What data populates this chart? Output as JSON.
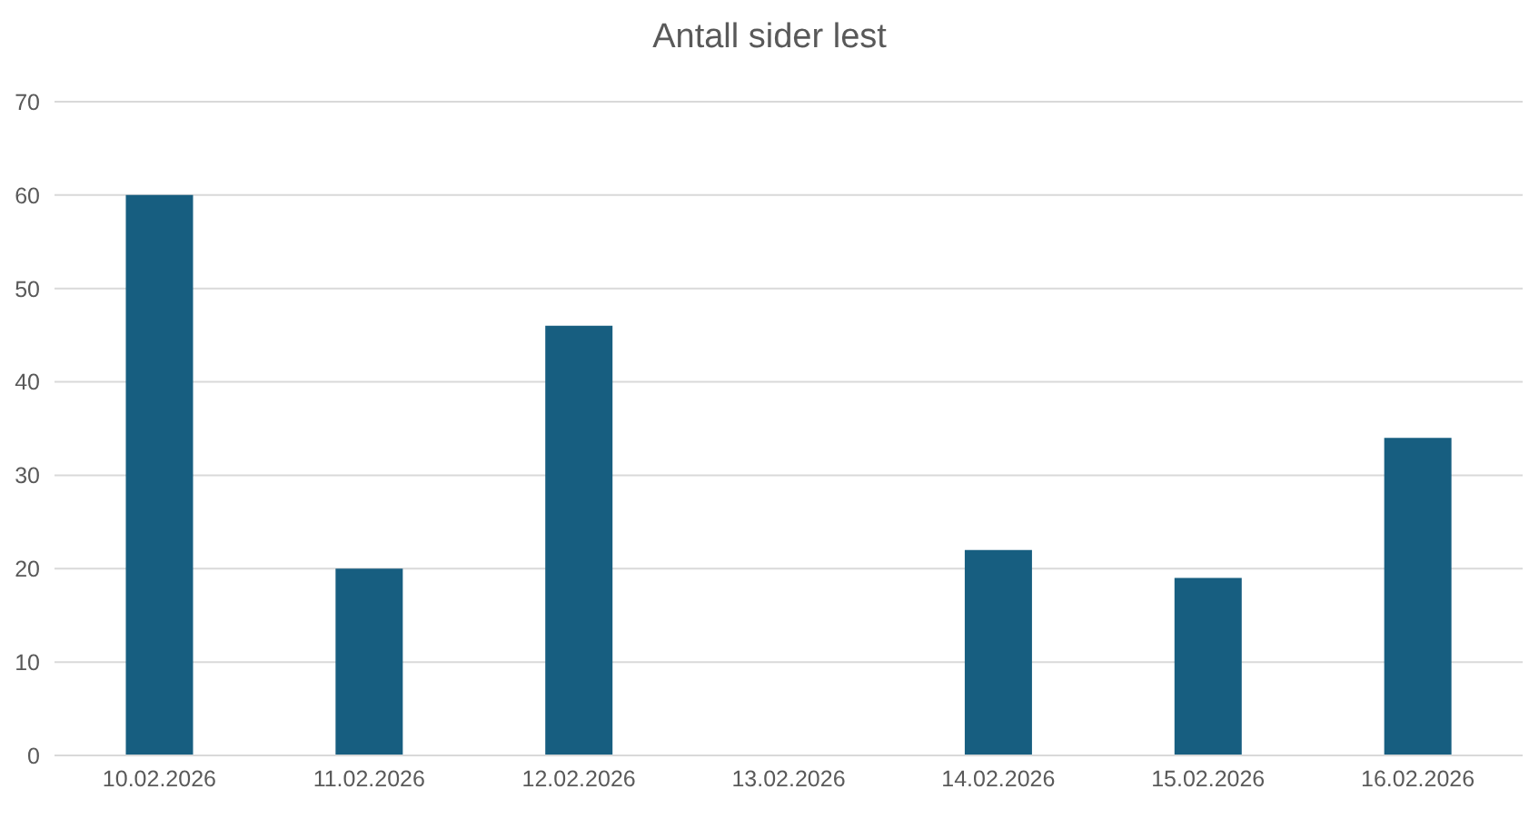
{
  "chart_data": {
    "type": "bar",
    "title": "Antall sider lest",
    "categories": [
      "10.02.2026",
      "11.02.2026",
      "12.02.2026",
      "13.02.2026",
      "14.02.2026",
      "15.02.2026",
      "16.02.2026"
    ],
    "values": [
      60,
      20,
      46,
      0,
      22,
      19,
      34
    ],
    "color": "#175e80",
    "ylim": [
      0,
      70
    ],
    "yticks": [
      0,
      10,
      20,
      30,
      40,
      50,
      60,
      70
    ],
    "grid": "y"
  }
}
